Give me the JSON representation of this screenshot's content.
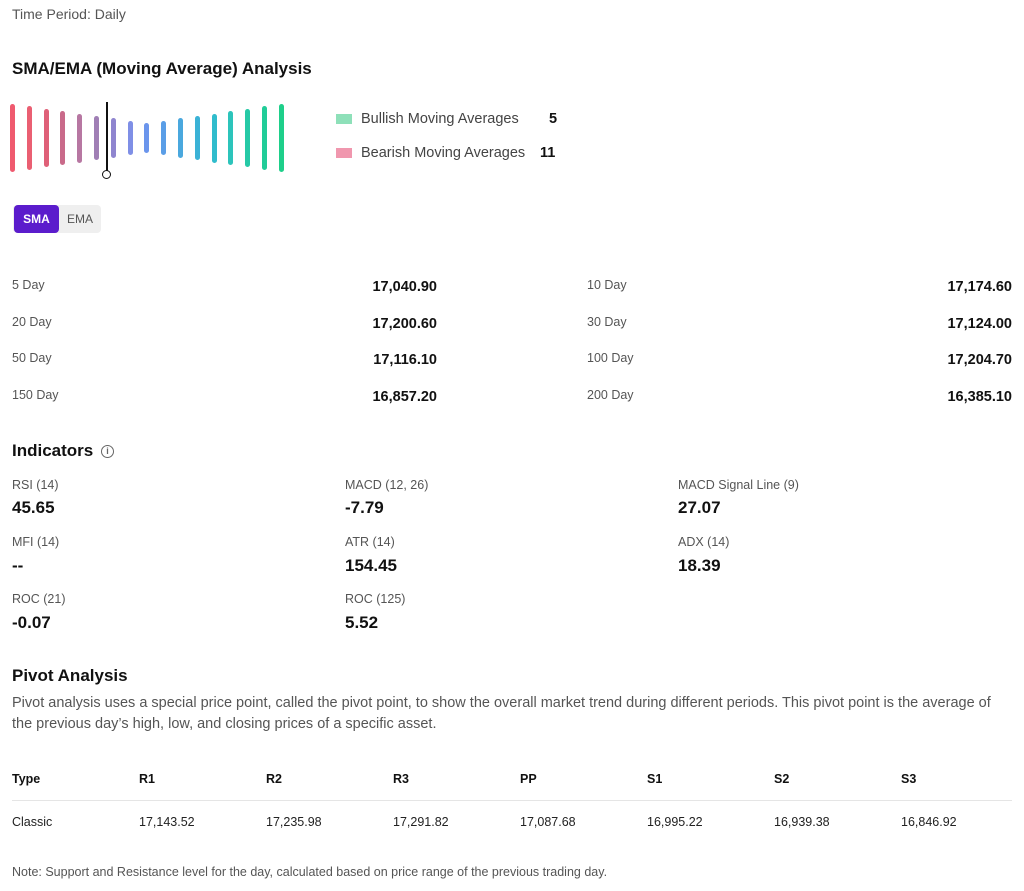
{
  "header": {
    "time_period": "Time Period: Daily"
  },
  "sma_section": {
    "title": "SMA/EMA (Moving Average) Analysis",
    "gauge": {
      "bar_colors": [
        "#ef5a6f",
        "#ea5f72",
        "#df6078",
        "#c96a8a",
        "#b777a2",
        "#a07fb5",
        "#8f85cf",
        "#7f8fe6",
        "#6b95ec",
        "#5a9ee7",
        "#4aa8de",
        "#3bb2d6",
        "#30bccc",
        "#2cc4bb",
        "#26c9a6",
        "#21cc98",
        "#1ecf8a"
      ],
      "needle_index": 5.6,
      "bullish_color": "#8ee0b9",
      "bearish_color": "#f097ae"
    },
    "legend": {
      "bullish_label": "Bullish Moving Averages",
      "bullish_count": "5",
      "bearish_label": "Bearish Moving Averages",
      "bearish_count": "11"
    },
    "toggle": {
      "sma_label": "SMA",
      "ema_label": "EMA",
      "active": "SMA"
    },
    "moving_averages": [
      {
        "label": "5 Day",
        "value": "17,040.90"
      },
      {
        "label": "10 Day",
        "value": "17,174.60"
      },
      {
        "label": "20 Day",
        "value": "17,200.60"
      },
      {
        "label": "30 Day",
        "value": "17,124.00"
      },
      {
        "label": "50 Day",
        "value": "17,116.10"
      },
      {
        "label": "100 Day",
        "value": "17,204.70"
      },
      {
        "label": "150 Day",
        "value": "16,857.20"
      },
      {
        "label": "200 Day",
        "value": "16,385.10"
      }
    ]
  },
  "indicators": {
    "title": "Indicators",
    "info_icon": "info-icon",
    "items": [
      {
        "label": "RSI (14)",
        "value": "45.65"
      },
      {
        "label": "MACD (12, 26)",
        "value": "-7.79"
      },
      {
        "label": "MACD Signal Line (9)",
        "value": "27.07"
      },
      {
        "label": "MFI (14)",
        "value": "--"
      },
      {
        "label": "ATR (14)",
        "value": "154.45"
      },
      {
        "label": "ADX (14)",
        "value": "18.39"
      },
      {
        "label": "ROC (21)",
        "value": "-0.07"
      },
      {
        "label": "ROC (125)",
        "value": "5.52"
      }
    ]
  },
  "pivot": {
    "title": "Pivot Analysis",
    "description": "Pivot analysis uses a special price point, called the pivot point, to show the overall market trend during different periods. This pivot point is the average of the previous day’s high, low, and closing prices of a specific asset.",
    "columns": [
      "Type",
      "R1",
      "R2",
      "R3",
      "PP",
      "S1",
      "S2",
      "S3"
    ],
    "rows": [
      [
        "Classic",
        "17,143.52",
        "17,235.98",
        "17,291.82",
        "17,087.68",
        "16,995.22",
        "16,939.38",
        "16,846.92"
      ]
    ],
    "note": "Note: Support and Resistance level for the day, calculated based on price range of the previous trading day."
  }
}
